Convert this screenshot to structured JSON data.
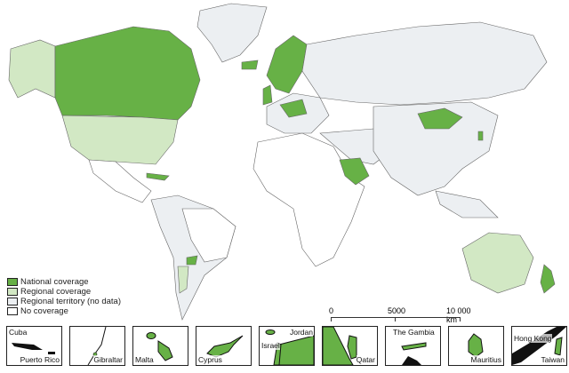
{
  "colors": {
    "national": "#67b146",
    "regional": "#d2e8c4",
    "territory": "#eceff2",
    "none": "#ffffff",
    "border": "#555555"
  },
  "legend": [
    {
      "label": "National coverage",
      "key": "national"
    },
    {
      "label": "Regional coverage",
      "key": "regional"
    },
    {
      "label": "Regional territory (no data)",
      "key": "territory"
    },
    {
      "label": "No coverage",
      "key": "none"
    }
  ],
  "scale_bar": {
    "labels": [
      "0",
      "5000",
      "10 000 km"
    ]
  },
  "insets": [
    {
      "labels": [
        "Cuba",
        "Puerto Rico"
      ]
    },
    {
      "labels": [
        "Gibraltar"
      ]
    },
    {
      "labels": [
        "Malta"
      ]
    },
    {
      "labels": [
        "Cyprus"
      ]
    },
    {
      "labels": [
        "Israel",
        "Jordan"
      ]
    },
    {
      "labels": [
        "Qatar"
      ]
    },
    {
      "labels": [
        "The Gambia"
      ]
    },
    {
      "labels": [
        "Mauritius"
      ]
    },
    {
      "labels": [
        "Hong Kong",
        "Taiwan"
      ]
    }
  ]
}
